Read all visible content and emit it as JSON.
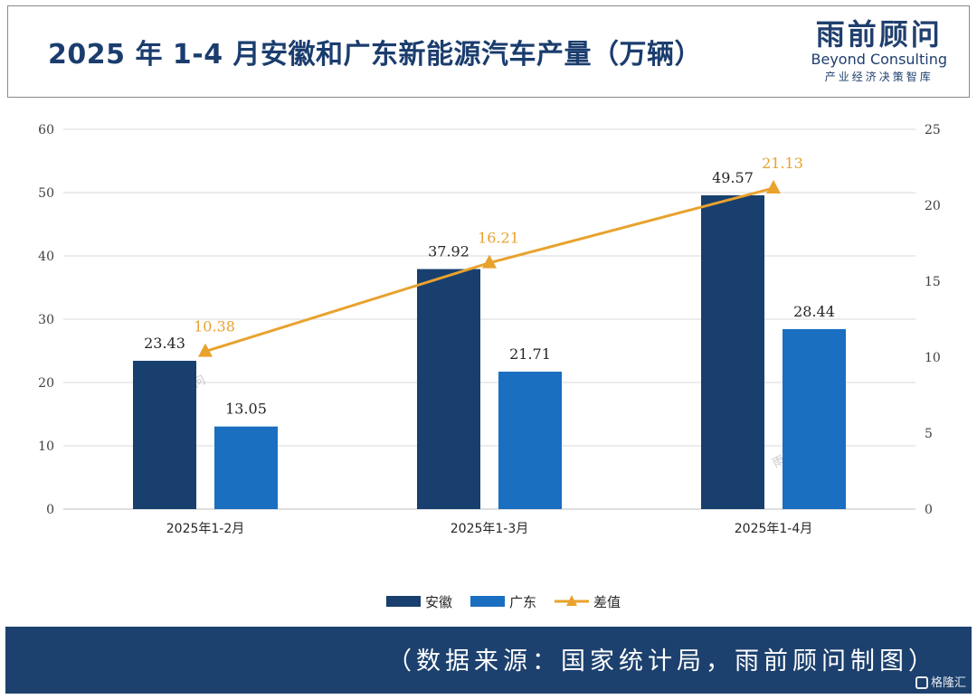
{
  "header": {
    "title": "2025 年 1-4 月安徽和广东新能源汽车产量（万辆）",
    "logo_cn": "雨前顾问",
    "logo_en": "Beyond Consulting",
    "logo_sub": "产业经济决策智库"
  },
  "footer": {
    "source": "（数据来源：国家统计局，雨前顾问制图）",
    "corner_watermark": "格隆汇"
  },
  "watermark": "雨前顾问",
  "colors": {
    "anhui": "#183f6e",
    "guangdong": "#1a6fc0",
    "diff": "#e8a22e",
    "title": "#1b3d6e",
    "footer_bg": "#1d416e"
  },
  "chart_data": {
    "type": "bar",
    "categories": [
      "2025年1-2月",
      "2025年1-3月",
      "2025年1-4月"
    ],
    "series": [
      {
        "name": "安徽",
        "type": "bar",
        "axis": "left",
        "values": [
          23.43,
          37.92,
          49.57
        ],
        "labels": [
          "23.43",
          "37.92",
          "49.57"
        ]
      },
      {
        "name": "广东",
        "type": "bar",
        "axis": "left",
        "values": [
          13.05,
          21.71,
          28.44
        ],
        "labels": [
          "13.05",
          "21.71",
          "28.44"
        ]
      },
      {
        "name": "差值",
        "type": "line",
        "axis": "right",
        "values": [
          10.38,
          16.21,
          21.13
        ],
        "labels": [
          "10.38",
          "16.21",
          "21.13"
        ]
      }
    ],
    "ylim_left": [
      0,
      60
    ],
    "ylim_right": [
      0,
      25
    ],
    "yticks_left": [
      0,
      10,
      20,
      30,
      40,
      50,
      60
    ],
    "yticks_right": [
      0,
      5,
      10,
      15,
      20,
      25
    ],
    "grid": true,
    "legend": "bottom-center"
  }
}
